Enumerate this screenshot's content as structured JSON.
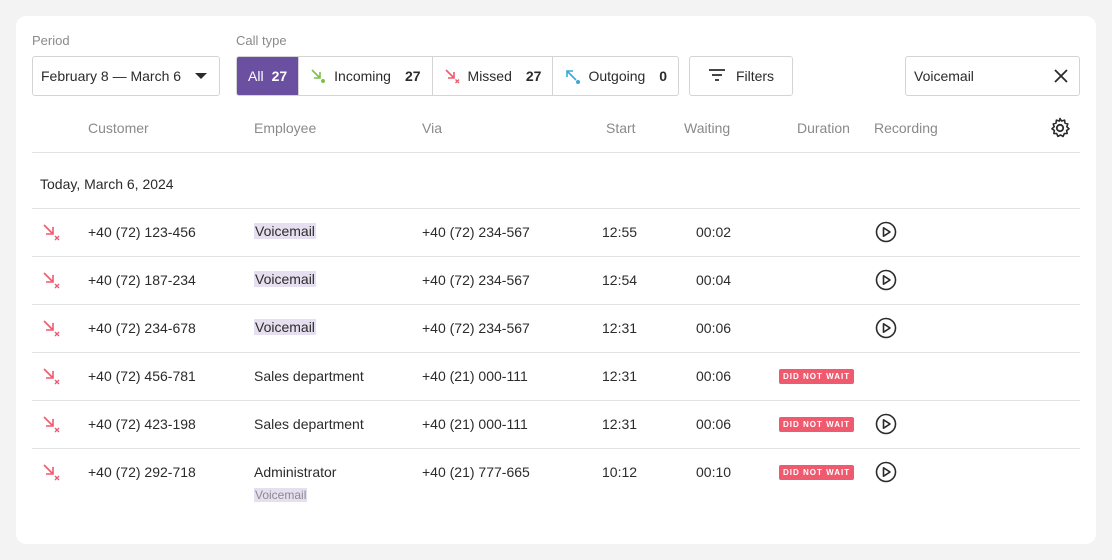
{
  "filters": {
    "period_label": "Period",
    "period_value": "February 8 — March 6",
    "call_type_label": "Call type",
    "call_types": [
      {
        "label": "All",
        "count": "27"
      },
      {
        "label": "Incoming",
        "count": "27"
      },
      {
        "label": "Missed",
        "count": "27"
      },
      {
        "label": "Outgoing",
        "count": "0"
      }
    ],
    "filters_button": "Filters",
    "search_value": "Voicemail"
  },
  "columns": [
    "Customer",
    "Employee",
    "Via",
    "Start",
    "Waiting",
    "Duration",
    "Recording"
  ],
  "date_group": "Today, March 6, 2024",
  "rows": [
    {
      "customer": "+40 (72) 123-456",
      "employee": "Voicemail",
      "via": "+40 (72) 234-567",
      "start": "12:55",
      "waiting": "00:02",
      "duration": "",
      "recording": true
    },
    {
      "customer": "+40 (72) 187-234",
      "employee": "Voicemail",
      "via": "+40 (72) 234-567",
      "start": "12:54",
      "waiting": "00:04",
      "duration": "",
      "recording": true
    },
    {
      "customer": "+40 (72) 234-678",
      "employee": "Voicemail",
      "via": "+40 (72) 234-567",
      "start": "12:31",
      "waiting": "00:06",
      "duration": "",
      "recording": true
    },
    {
      "customer": "+40 (72) 456-781",
      "employee": "Sales department",
      "via": "+40 (21) 000-111",
      "start": "12:31",
      "waiting": "00:06",
      "duration": "DID NOT WAIT",
      "recording": false
    },
    {
      "customer": "+40 (72) 423-198",
      "employee": "Sales department",
      "via": "+40 (21) 000-111",
      "start": "12:31",
      "waiting": "00:06",
      "duration": "DID NOT WAIT",
      "recording": true
    },
    {
      "customer": "+40 (72) 292-718",
      "employee": "Administrator",
      "employee_sub": "Voicemail",
      "via": "+40 (21) 777-665",
      "start": "10:12",
      "waiting": "00:10",
      "duration": "DID NOT WAIT",
      "recording": true
    }
  ],
  "colors": {
    "accent": "#6b4fa0",
    "missed": "#ef5a6e",
    "incoming": "#7cc04a",
    "outgoing": "#3aa8d8",
    "highlight": "#e6dff0"
  }
}
